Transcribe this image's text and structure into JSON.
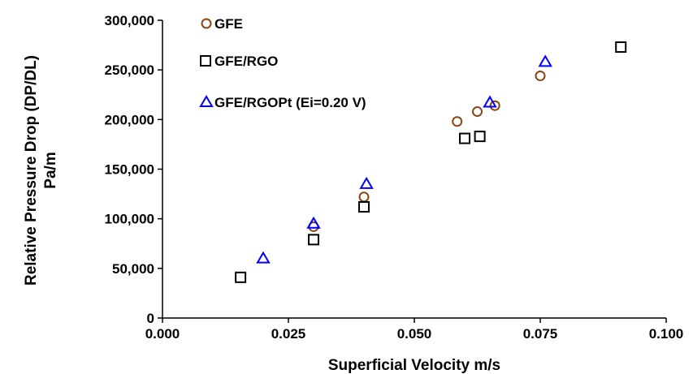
{
  "chart_data": {
    "type": "scatter",
    "title": "",
    "xlabel": "Superficial Velocity m/s",
    "ylabel_lines": [
      "Relative Pressure Drop (DP/DL)",
      "Pa/m"
    ],
    "xlim": [
      0,
      0.1
    ],
    "ylim": [
      0,
      300000
    ],
    "x_ticks": [
      0,
      0.025,
      0.05,
      0.075,
      0.1
    ],
    "x_tick_labels": [
      "0.000",
      "0.025",
      "0.050",
      "0.075",
      "0.100"
    ],
    "y_ticks": [
      0,
      50000,
      100000,
      150000,
      200000,
      250000,
      300000
    ],
    "y_tick_labels": [
      "0",
      "50,000",
      "100,000",
      "150,000",
      "200,000",
      "250,000",
      "300,000"
    ],
    "grid": false,
    "legend_position": "top-left",
    "series": [
      {
        "name": "GFE",
        "marker": "circle",
        "color": "#8B4513",
        "points": [
          {
            "x": 0.03,
            "y": 92000
          },
          {
            "x": 0.04,
            "y": 122000
          },
          {
            "x": 0.0585,
            "y": 198000
          },
          {
            "x": 0.0625,
            "y": 208000
          },
          {
            "x": 0.066,
            "y": 214000
          },
          {
            "x": 0.075,
            "y": 244000
          }
        ]
      },
      {
        "name": "GFE/RGO",
        "marker": "square",
        "color": "#000000",
        "points": [
          {
            "x": 0.0155,
            "y": 41000
          },
          {
            "x": 0.03,
            "y": 79000
          },
          {
            "x": 0.04,
            "y": 112000
          },
          {
            "x": 0.06,
            "y": 181000
          },
          {
            "x": 0.063,
            "y": 183000
          },
          {
            "x": 0.091,
            "y": 273000
          }
        ]
      },
      {
        "name": "GFE/RGOPt (Ei=0.20 V)",
        "marker": "triangle",
        "color": "#0000FF",
        "points": [
          {
            "x": 0.02,
            "y": 60000
          },
          {
            "x": 0.03,
            "y": 95000
          },
          {
            "x": 0.0405,
            "y": 135000
          },
          {
            "x": 0.065,
            "y": 217000
          },
          {
            "x": 0.076,
            "y": 258000
          }
        ]
      }
    ]
  }
}
